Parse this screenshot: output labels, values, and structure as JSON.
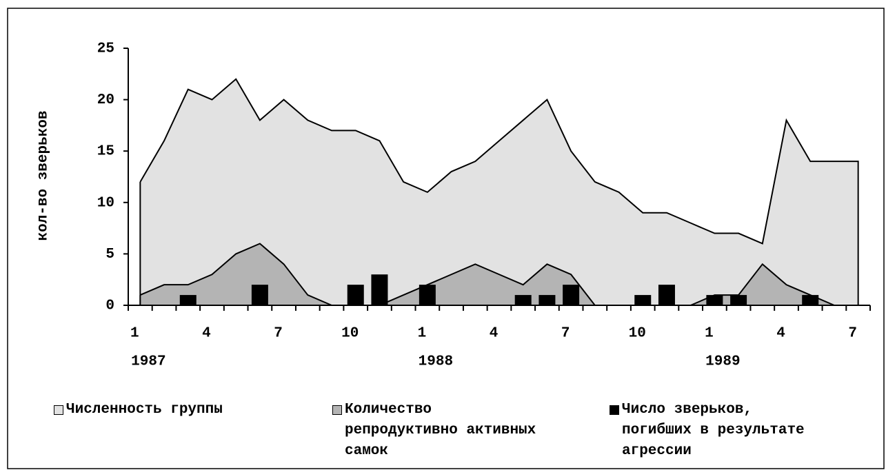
{
  "chart_data": {
    "type": "combo",
    "y_label": "кол-во зверьков",
    "categories": [
      "1",
      null,
      null,
      "4",
      null,
      null,
      "7",
      null,
      null,
      "10",
      null,
      null,
      "1",
      null,
      null,
      "4",
      null,
      null,
      "7",
      null,
      null,
      "10",
      null,
      null,
      "1",
      null,
      null,
      "4",
      null,
      null,
      "7"
    ],
    "year_categories": [
      "1987",
      null,
      null,
      null,
      null,
      null,
      null,
      null,
      null,
      null,
      null,
      null,
      "1988",
      null,
      null,
      null,
      null,
      null,
      null,
      null,
      null,
      null,
      null,
      null,
      "1989",
      null,
      null,
      null,
      null,
      null,
      null
    ],
    "series": [
      {
        "name": "Численность группы",
        "type": "area",
        "color": "#e2e2e2",
        "values": [
          12,
          16,
          21,
          20,
          22,
          18,
          20,
          18,
          17,
          17,
          16,
          12,
          11,
          13,
          14,
          16,
          18,
          20,
          15,
          12,
          11,
          9,
          9,
          8,
          7,
          7,
          6,
          18,
          14,
          14,
          14
        ]
      },
      {
        "name": "Количество репродуктивно активных самок",
        "type": "area",
        "color": "#b4b4b4",
        "values": [
          1,
          2,
          2,
          3,
          5,
          6,
          4,
          1,
          0,
          0,
          0,
          1,
          2,
          3,
          4,
          3,
          2,
          4,
          3,
          0,
          0,
          0,
          0,
          0,
          1,
          1,
          4,
          2,
          1,
          0,
          0
        ]
      },
      {
        "name": "Число зверьков, погибших в результате агрессии",
        "type": "bar",
        "color": "#000000",
        "values": [
          0,
          0,
          1,
          0,
          0,
          2,
          0,
          0,
          0,
          2,
          3,
          0,
          2,
          0,
          0,
          0,
          1,
          1,
          2,
          0,
          0,
          1,
          2,
          0,
          1,
          1,
          0,
          0,
          1,
          0,
          0
        ]
      }
    ],
    "ylim": [
      0,
      25
    ],
    "yticks": [
      0,
      5,
      10,
      15,
      20,
      25
    ],
    "legend": "bottom"
  }
}
